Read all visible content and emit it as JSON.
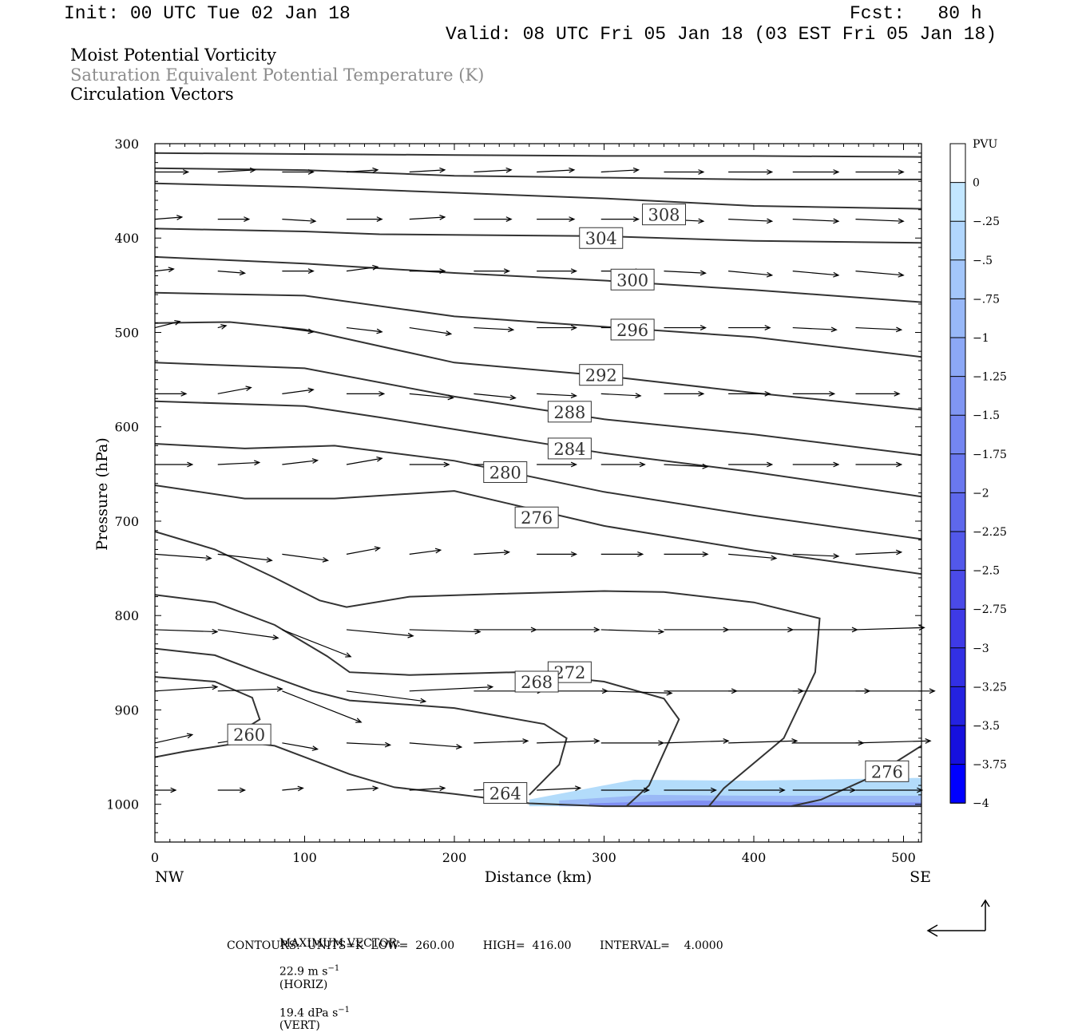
{
  "header": {
    "init": "Init: 00 UTC Tue 02 Jan 18",
    "fcst": "Fcst:   80 h",
    "valid": "Valid: 08 UTC Fri 05 Jan 18 (03 EST Fri 05 Jan 18)",
    "field1": "Moist Potential Vorticity",
    "field2": "Saturation Equivalent Potential Temperature (K)",
    "field3": "Circulation Vectors"
  },
  "footer": {
    "max_vector_label": "MAXIMUM VECTOR:",
    "max_vector_horiz": "22.9 m s",
    "horiz_tag": "(HORIZ)",
    "max_vector_vert": "19.4 dPa s",
    "vert_tag": "(VERT)",
    "exponent": "−1",
    "contours": "CONTOURS:  UNITS=K  LOW=  260.00        HIGH=  416.00        INTERVAL=    4.0000"
  },
  "chart_data": {
    "type": "contour",
    "xlabel": "Distance (km)",
    "ylabel": "Pressure (hPa)",
    "x_ticks": [
      0,
      100,
      200,
      300,
      400,
      500
    ],
    "y_ticks": [
      300,
      400,
      500,
      600,
      700,
      800,
      900,
      1000
    ],
    "xlim": [
      0,
      512
    ],
    "ylim": [
      1040,
      300
    ],
    "x_end_labels": {
      "left": "NW",
      "right": "SE"
    },
    "colorbar": {
      "unit": "PVU",
      "labels": [
        "0",
        "−.25",
        "−.5",
        "−.75",
        "−1",
        "−1.25",
        "−1.5",
        "−1.75",
        "−2",
        "−2.25",
        "−2.5",
        "−2.75",
        "−3",
        "−3.25",
        "−3.5",
        "−3.75",
        "−4"
      ],
      "colors": [
        "#ffffff",
        "#c2e6ff",
        "#b1d6fd",
        "#a3c6fa",
        "#98b8f8",
        "#8ca8f6",
        "#8096f3",
        "#7486f1",
        "#6a78ef",
        "#5e68ec",
        "#5258ea",
        "#4a4ae8",
        "#3e3ae6",
        "#3230e4",
        "#2422e1",
        "#1610de",
        "#0000ff"
      ]
    },
    "contour_labels": [
      {
        "text": "308",
        "x": 340,
        "p": 375
      },
      {
        "text": "304",
        "x": 298,
        "p": 400
      },
      {
        "text": "300",
        "x": 319,
        "p": 444
      },
      {
        "text": "296",
        "x": 319,
        "p": 497
      },
      {
        "text": "292",
        "x": 298,
        "p": 545
      },
      {
        "text": "288",
        "x": 277,
        "p": 584
      },
      {
        "text": "284",
        "x": 277,
        "p": 623
      },
      {
        "text": "280",
        "x": 234,
        "p": 648
      },
      {
        "text": "276",
        "x": 255,
        "p": 696
      },
      {
        "text": "272",
        "x": 277,
        "p": 860
      },
      {
        "text": "268",
        "x": 255,
        "p": 870
      },
      {
        "text": "264",
        "x": 234,
        "p": 988
      },
      {
        "text": "260",
        "x": 63,
        "p": 926
      },
      {
        "text": "276",
        "x": 489,
        "p": 965
      }
    ],
    "contours": [
      {
        "value": 316,
        "points": [
          [
            0,
            310
          ],
          [
            100,
            311
          ],
          [
            200,
            312
          ],
          [
            300,
            313
          ],
          [
            400,
            313
          ],
          [
            512,
            314
          ]
        ]
      },
      {
        "value": 312,
        "points": [
          [
            0,
            326
          ],
          [
            100,
            328
          ],
          [
            200,
            334
          ],
          [
            300,
            336
          ],
          [
            400,
            338
          ],
          [
            512,
            338
          ]
        ]
      },
      {
        "value": 308,
        "points": [
          [
            0,
            342
          ],
          [
            100,
            346
          ],
          [
            200,
            352
          ],
          [
            300,
            358
          ],
          [
            400,
            366
          ],
          [
            512,
            369
          ]
        ]
      },
      {
        "value": 304,
        "points": [
          [
            0,
            390
          ],
          [
            100,
            393
          ],
          [
            150,
            396
          ],
          [
            300,
            398
          ],
          [
            400,
            403
          ],
          [
            512,
            405
          ]
        ]
      },
      {
        "value": 300,
        "points": [
          [
            0,
            420
          ],
          [
            100,
            427
          ],
          [
            200,
            437
          ],
          [
            300,
            445
          ],
          [
            400,
            455
          ],
          [
            512,
            468
          ]
        ]
      },
      {
        "value": 296,
        "points": [
          [
            0,
            458
          ],
          [
            100,
            461
          ],
          [
            200,
            483
          ],
          [
            300,
            494
          ],
          [
            400,
            505
          ],
          [
            512,
            526
          ]
        ]
      },
      {
        "value": 292,
        "points": [
          [
            0,
            490
          ],
          [
            50,
            489
          ],
          [
            100,
            497
          ],
          [
            200,
            532
          ],
          [
            300,
            546
          ],
          [
            400,
            564
          ],
          [
            512,
            582
          ]
        ]
      },
      {
        "value": 288,
        "points": [
          [
            0,
            532
          ],
          [
            100,
            538
          ],
          [
            200,
            568
          ],
          [
            300,
            592
          ],
          [
            400,
            608
          ],
          [
            512,
            630
          ]
        ]
      },
      {
        "value": 284,
        "points": [
          [
            0,
            573
          ],
          [
            100,
            578
          ],
          [
            150,
            590
          ],
          [
            300,
            628
          ],
          [
            400,
            648
          ],
          [
            512,
            674
          ]
        ]
      },
      {
        "value": 280,
        "points": [
          [
            0,
            618
          ],
          [
            60,
            623
          ],
          [
            120,
            620
          ],
          [
            200,
            636
          ],
          [
            300,
            669
          ],
          [
            400,
            694
          ],
          [
            512,
            719
          ]
        ]
      },
      {
        "value": 276,
        "points": [
          [
            0,
            662
          ],
          [
            60,
            676
          ],
          [
            120,
            676
          ],
          [
            200,
            668
          ],
          [
            300,
            705
          ],
          [
            400,
            731
          ],
          [
            512,
            756
          ]
        ]
      },
      {
        "value": 272,
        "points": [
          [
            0,
            711
          ],
          [
            40,
            730
          ],
          [
            80,
            760
          ],
          [
            110,
            784
          ],
          [
            128,
            791
          ],
          [
            170,
            780
          ],
          [
            230,
            777
          ],
          [
            300,
            774
          ],
          [
            340,
            775
          ],
          [
            400,
            786
          ],
          [
            444,
            803
          ],
          [
            441,
            860
          ],
          [
            420,
            930
          ],
          [
            380,
            983
          ],
          [
            370,
            1002
          ]
        ]
      },
      {
        "value": 268,
        "points": [
          [
            0,
            778
          ],
          [
            40,
            786
          ],
          [
            80,
            810
          ],
          [
            115,
            843
          ],
          [
            130,
            860
          ],
          [
            170,
            863
          ],
          [
            240,
            860
          ],
          [
            300,
            870
          ],
          [
            340,
            888
          ],
          [
            350,
            910
          ],
          [
            330,
            980
          ],
          [
            315,
            1002
          ]
        ]
      },
      {
        "value": 264,
        "points": [
          [
            0,
            835
          ],
          [
            40,
            842
          ],
          [
            70,
            860
          ],
          [
            105,
            880
          ],
          [
            130,
            890
          ],
          [
            200,
            898
          ],
          [
            260,
            915
          ],
          [
            275,
            930
          ],
          [
            270,
            958
          ],
          [
            250,
            990
          ]
        ]
      },
      {
        "value": 260,
        "points": [
          [
            0,
            865
          ],
          [
            40,
            870
          ],
          [
            65,
            887
          ],
          [
            70,
            910
          ],
          [
            50,
            930
          ]
        ]
      },
      {
        "value": 260,
        "points": [
          [
            0,
            950
          ],
          [
            20,
            944
          ],
          [
            60,
            934
          ],
          [
            80,
            938
          ],
          [
            100,
            950
          ],
          [
            130,
            968
          ],
          [
            160,
            982
          ],
          [
            200,
            989
          ],
          [
            250,
            999
          ],
          [
            300,
            1002
          ],
          [
            400,
            1002
          ],
          [
            512,
            1002
          ]
        ]
      },
      {
        "value": 276,
        "points": [
          [
            512,
            938
          ],
          [
            480,
            970
          ],
          [
            445,
            995
          ],
          [
            425,
            1002
          ]
        ]
      }
    ],
    "pv_shading": {
      "level": "−.25 to −1",
      "points": [
        [
          250,
          995
        ],
        [
          300,
          980
        ],
        [
          320,
          974
        ],
        [
          400,
          975
        ],
        [
          512,
          972
        ],
        [
          512,
          1002
        ],
        [
          250,
          1002
        ]
      ]
    },
    "vectors": [
      {
        "p": 330,
        "x0": [
          0,
          42,
          85,
          128,
          170,
          213,
          255,
          298,
          340,
          383,
          426,
          468
        ],
        "dx": [
          16,
          18,
          15,
          15,
          17,
          18,
          18,
          18,
          19,
          21,
          22,
          23
        ],
        "dy": [
          0,
          -1,
          0,
          -1,
          -1,
          -1,
          -1,
          -1,
          0,
          0,
          0,
          0
        ]
      },
      {
        "p": 380,
        "x0": [
          0,
          42,
          85,
          128,
          170,
          213,
          255,
          298,
          340,
          383,
          426,
          468
        ],
        "dx": [
          13,
          15,
          16,
          17,
          17,
          18,
          18,
          18,
          19,
          21,
          22,
          23
        ],
        "dy": [
          -1,
          0,
          1,
          0,
          -1,
          0,
          0,
          0,
          1,
          1,
          1,
          1
        ]
      },
      {
        "p": 435,
        "x0": [
          0,
          42,
          85,
          128,
          170,
          213,
          255,
          298,
          340,
          383,
          426,
          468
        ],
        "dx": [
          9,
          13,
          15,
          15,
          17,
          17,
          19,
          19,
          20,
          21,
          22,
          23
        ],
        "dy": [
          -1,
          1,
          0,
          -2,
          0,
          0,
          0,
          0,
          1,
          2,
          2,
          2
        ]
      },
      {
        "p": 495,
        "x0": [
          0,
          42,
          85,
          128,
          170,
          213,
          255,
          298,
          340,
          383,
          426,
          468
        ],
        "dx": [
          12,
          4,
          15,
          17,
          20,
          19,
          19,
          19,
          20,
          20,
          21,
          22
        ],
        "dy": [
          -3,
          -1,
          2,
          2,
          3,
          1,
          0,
          0,
          0,
          0,
          1,
          1
        ]
      },
      {
        "p": 565,
        "x0": [
          0,
          42,
          85,
          128,
          170,
          213,
          255,
          298,
          340,
          383,
          426,
          468
        ],
        "dx": [
          15,
          16,
          15,
          18,
          21,
          20,
          19,
          19,
          19,
          20,
          20,
          21
        ],
        "dy": [
          0,
          -3,
          -2,
          0,
          2,
          2,
          1,
          1,
          0,
          0,
          0,
          0
        ]
      },
      {
        "p": 640,
        "x0": [
          0,
          42,
          85,
          128,
          170,
          213,
          255,
          298,
          340,
          383,
          426,
          468
        ],
        "dx": [
          18,
          20,
          17,
          17,
          19,
          19,
          19,
          21,
          21,
          21,
          22,
          22
        ],
        "dy": [
          0,
          -1,
          -2,
          -3,
          0,
          0,
          0,
          0,
          1,
          0,
          0,
          0
        ]
      },
      {
        "p": 735,
        "x0": [
          0,
          42,
          85,
          128,
          170,
          213,
          255,
          298,
          340,
          383,
          426,
          468
        ],
        "dx": [
          27,
          26,
          22,
          16,
          15,
          17,
          19,
          20,
          21,
          23,
          22,
          22
        ],
        "dy": [
          2,
          3,
          3,
          -3,
          -2,
          -1,
          0,
          0,
          0,
          2,
          1,
          -1
        ]
      },
      {
        "p": 815,
        "x0": [
          0,
          42,
          85,
          128,
          170,
          213,
          255,
          298,
          340,
          383,
          426,
          468
        ],
        "dx": [
          30,
          29,
          33,
          32,
          34,
          30,
          30,
          30,
          31,
          31,
          31,
          33
        ],
        "dy": [
          1,
          4,
          13,
          3,
          1,
          0,
          0,
          1,
          0,
          0,
          0,
          -1
        ]
      },
      {
        "p": 880,
        "x0": [
          0,
          42,
          85,
          128,
          170,
          213,
          255,
          298,
          340,
          383,
          426,
          468
        ],
        "dx": [
          30,
          31,
          38,
          38,
          40,
          33,
          34,
          34,
          35,
          36,
          37,
          38
        ],
        "dy": [
          -2,
          -1,
          15,
          5,
          -2,
          0,
          0,
          1,
          0,
          0,
          0,
          0
        ]
      },
      {
        "p": 935,
        "x0": [
          0,
          42,
          85,
          128,
          170,
          213,
          255,
          298,
          340,
          383,
          426,
          468
        ],
        "dx": [
          18,
          19,
          17,
          21,
          25,
          26,
          30,
          30,
          31,
          33,
          34,
          36
        ],
        "dy": [
          -4,
          -3,
          3,
          1,
          2,
          -1,
          -1,
          0,
          -1,
          -1,
          0,
          -1
        ]
      },
      {
        "p": 985,
        "x0": [
          0,
          42,
          85,
          128,
          170,
          213,
          255,
          298,
          340,
          383,
          426,
          468
        ],
        "dx": [
          10,
          13,
          10,
          15,
          17,
          19,
          21,
          23,
          25,
          27,
          30,
          32
        ],
        "dy": [
          0,
          0,
          -1,
          -1,
          -1,
          -1,
          -1,
          0,
          0,
          0,
          0,
          0
        ]
      }
    ]
  }
}
